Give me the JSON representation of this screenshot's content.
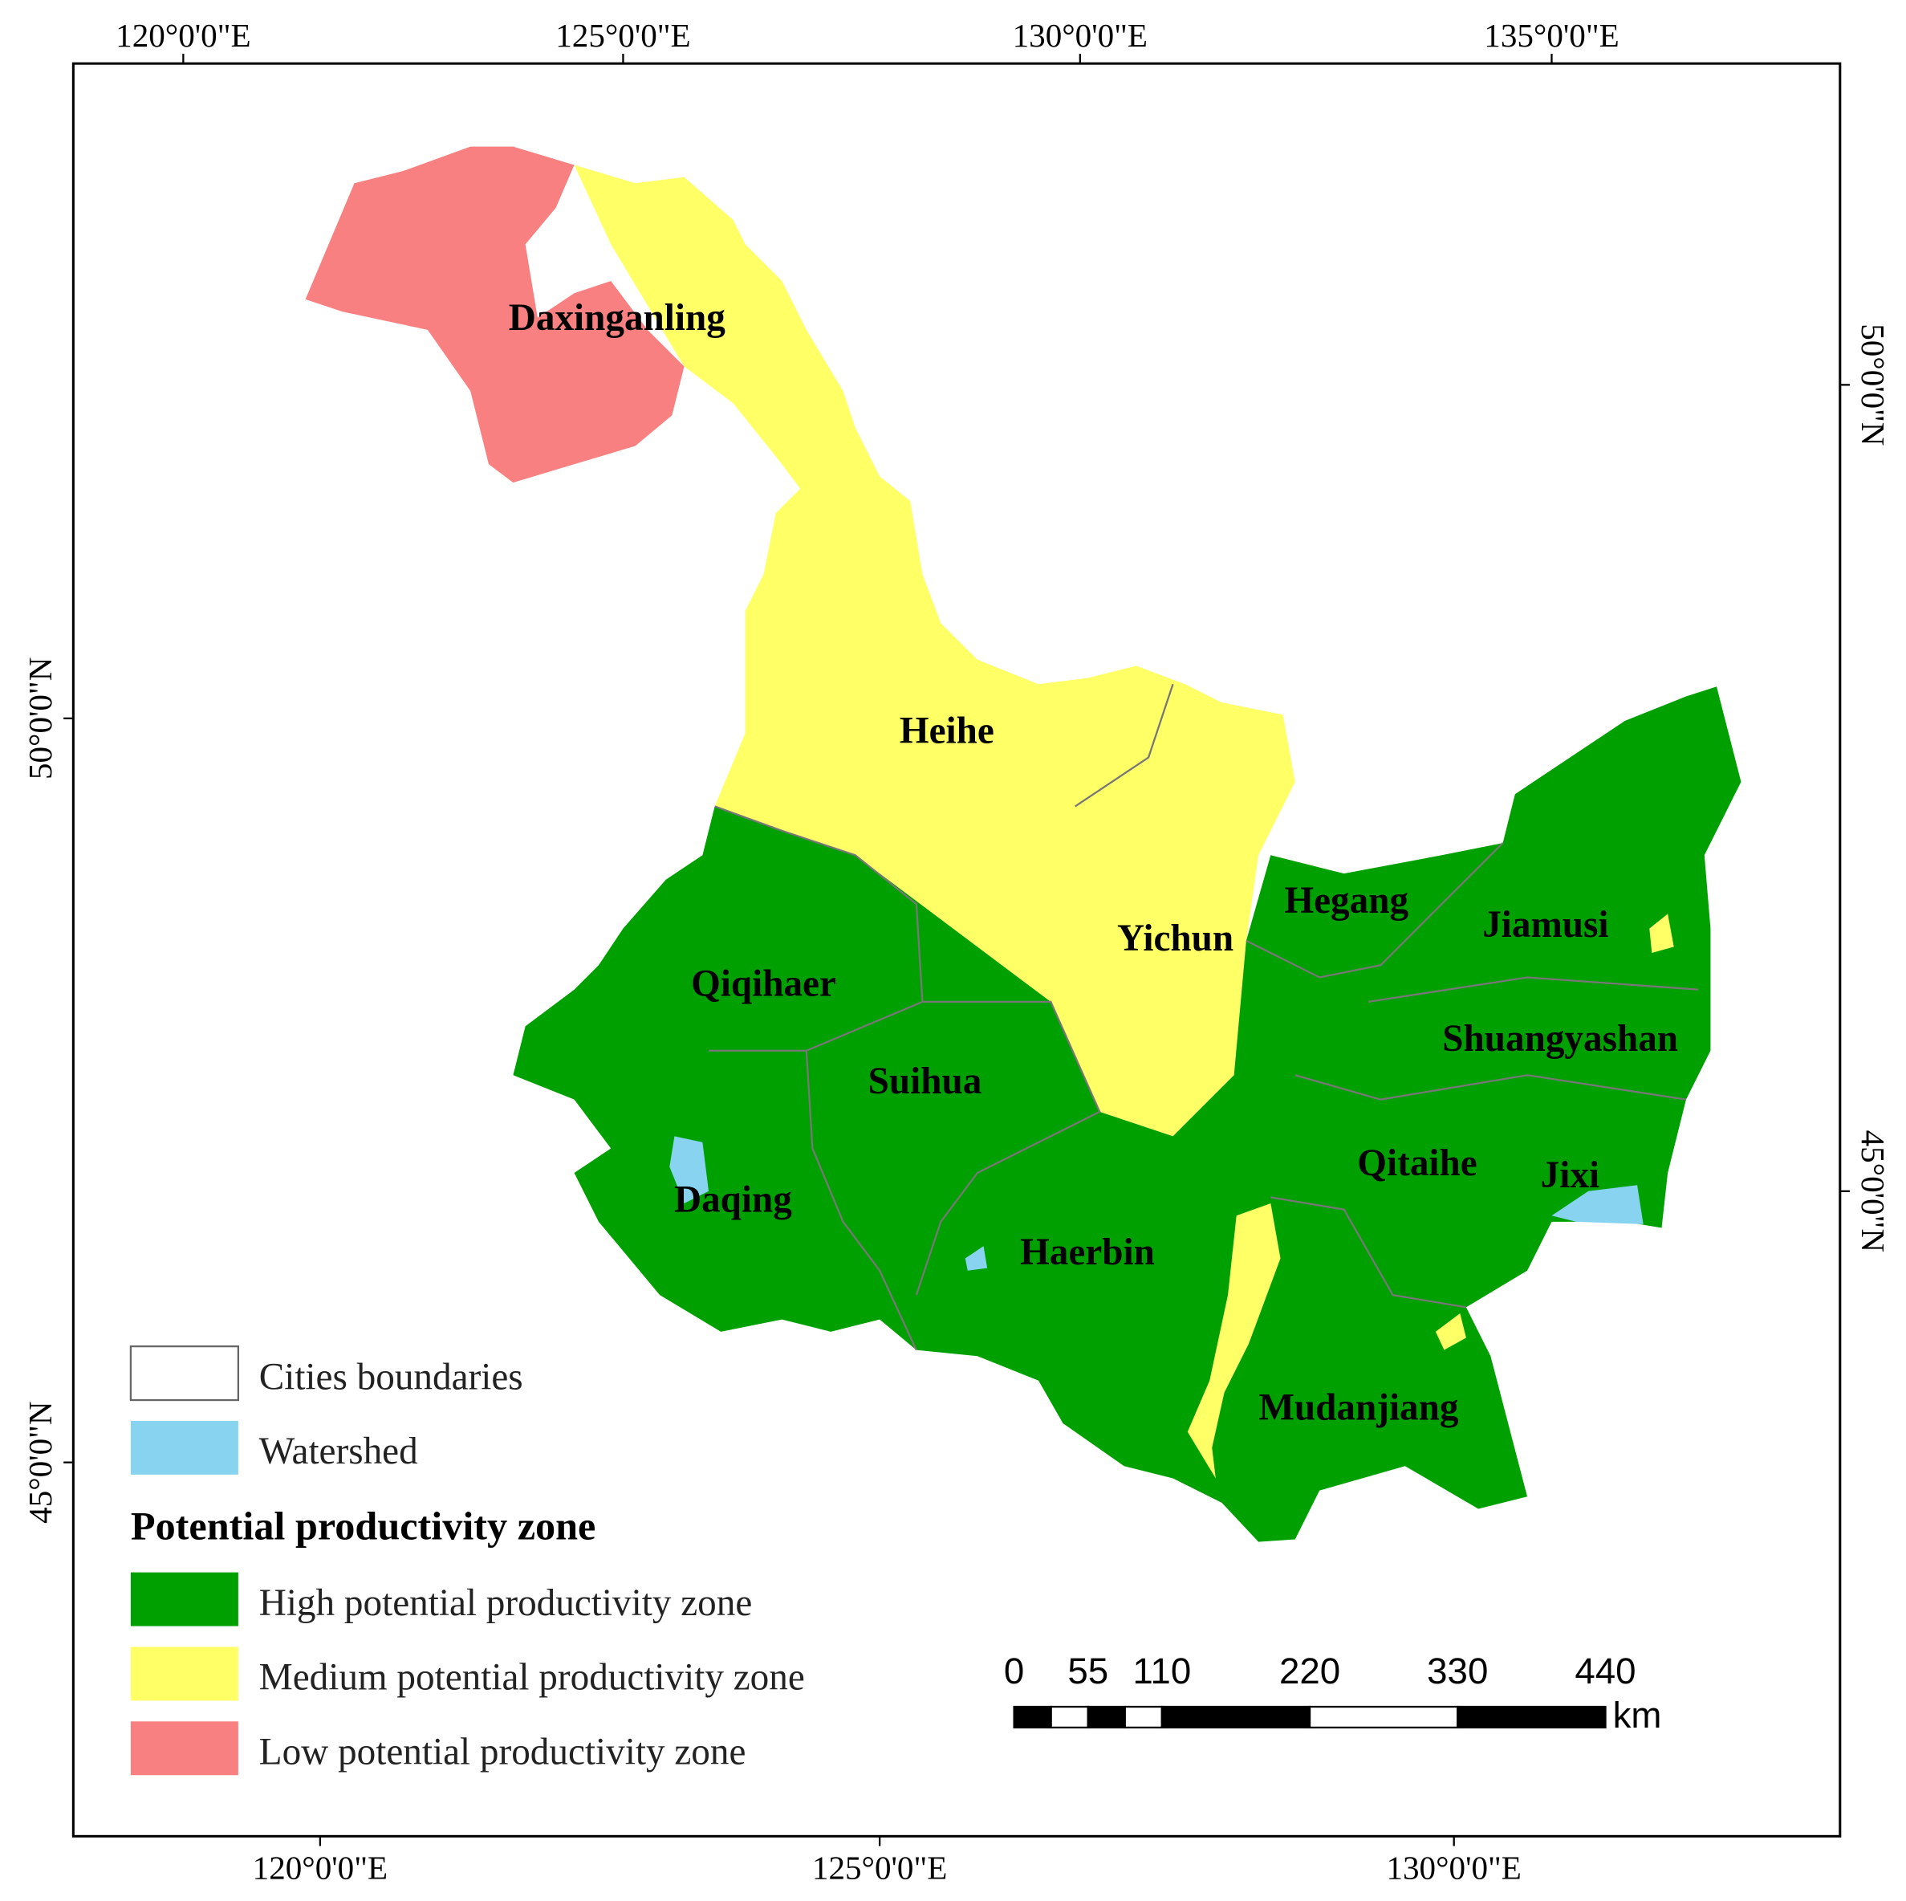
{
  "frame_ticks": {
    "top": [
      "120°0'0\"E",
      "125°0'0\"E",
      "130°0'0\"E",
      "135°0'0\"E"
    ],
    "bottom": [
      "120°0'0\"E",
      "125°0'0\"E",
      "130°0'0\"E"
    ],
    "left": [
      "50°0'0\"N",
      "45°0'0\"N"
    ],
    "right": [
      "50°0'0\"N",
      "45°0'0\"N"
    ]
  },
  "cities": [
    "Daxinganling",
    "Heihe",
    "Yichun",
    "Hegang",
    "Jiamusi",
    "Qiqihaer",
    "Shuangyashan",
    "Suihua",
    "Qitaihe",
    "Jixi",
    "Daqing",
    "Haerbin",
    "Mudanjiang"
  ],
  "legend": {
    "boundaries": "Cities boundaries",
    "watershed": {
      "label": "Watershed",
      "color": "#87d3f0"
    },
    "title": "Potential productivity zone",
    "zones": [
      {
        "label": "High potential productivity zone",
        "color": "#00a000"
      },
      {
        "label": "Medium potential productivity zone",
        "color": "#ffff66"
      },
      {
        "label": "Low potential productivity zone",
        "color": "#f88080"
      }
    ]
  },
  "scale_bar": {
    "ticks": [
      0,
      55,
      110,
      220,
      330,
      440
    ],
    "unit": "km"
  }
}
